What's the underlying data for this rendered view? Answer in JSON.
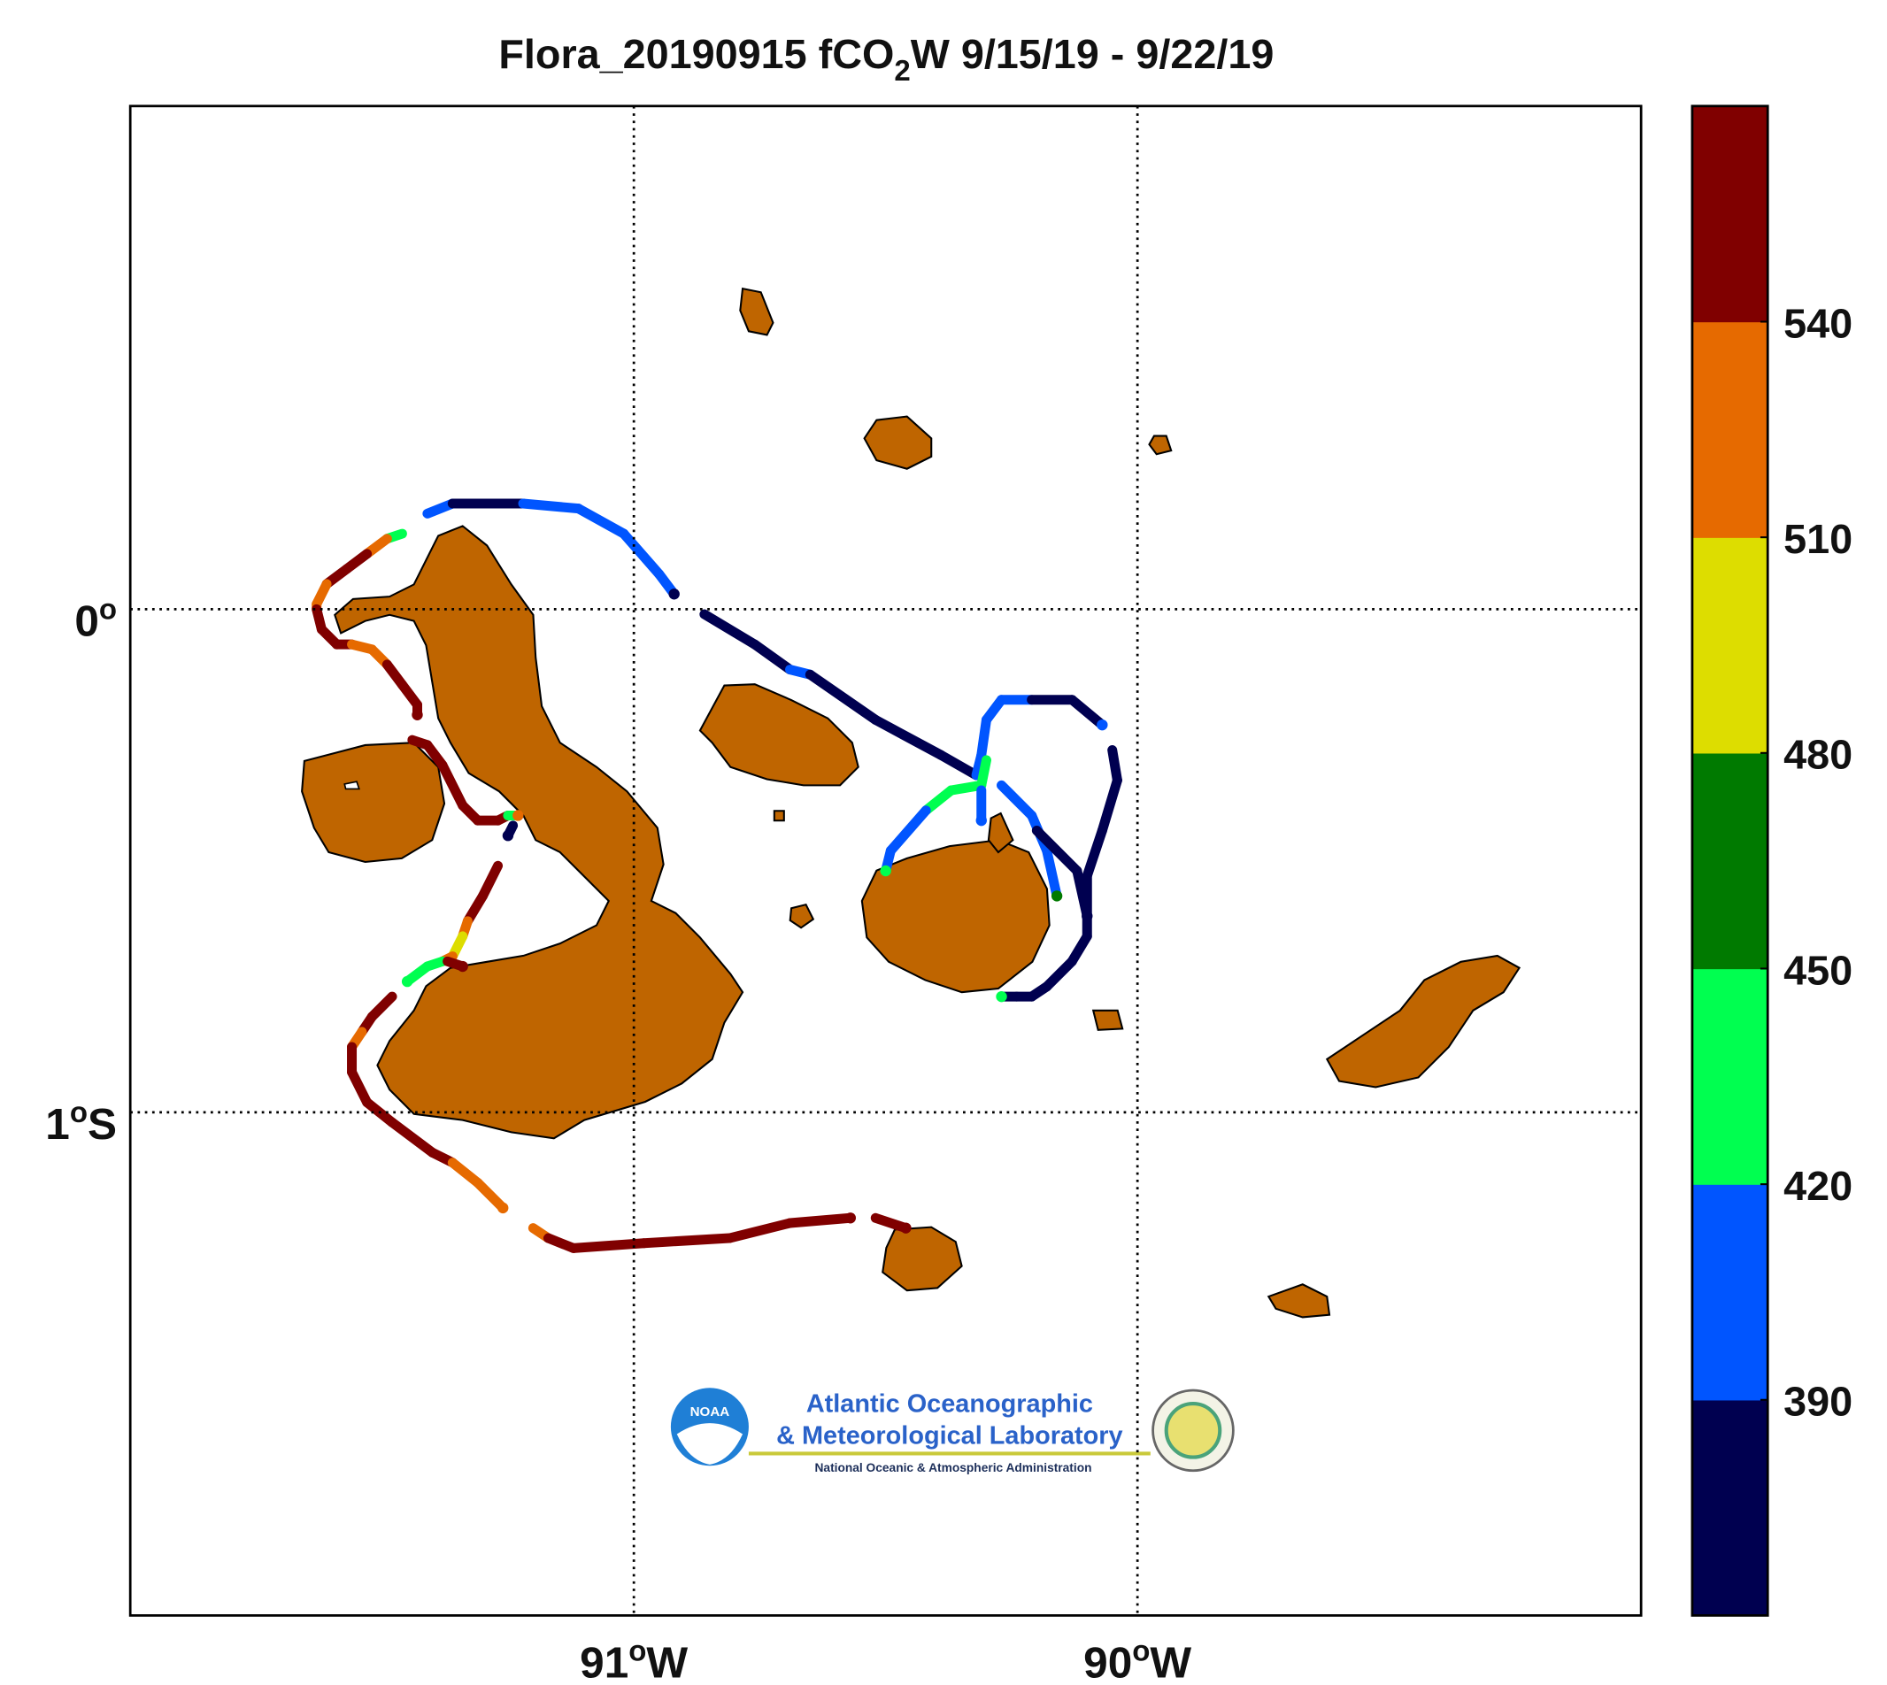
{
  "chart_data": {
    "type": "track",
    "title": "Flora_20190915 fCO",
    "title_sub": "2",
    "title_rest": "W 9/15/19 - 9/22/19",
    "xlim": [
      -92,
      -89
    ],
    "ylim": [
      -2,
      1
    ],
    "xticks": [
      {
        "value": -91,
        "label": "91",
        "sup": "o",
        "hemi": "W"
      },
      {
        "value": -90,
        "label": "90",
        "sup": "o",
        "hemi": "W"
      }
    ],
    "yticks": [
      {
        "value": 0,
        "label": "0",
        "sup": "o"
      },
      {
        "value": -1,
        "label": "1",
        "sup": "o",
        "hemi": "S"
      }
    ],
    "grid": true,
    "colormap": {
      "colors": [
        "#000050",
        "#0055ff",
        "#00ff50",
        "#007a00",
        "#dddd00",
        "#e66a00",
        "#800000"
      ],
      "clim": [
        360,
        570
      ],
      "ticks": [
        390,
        420,
        450,
        480,
        510,
        540
      ]
    },
    "lon": [
      -91.41,
      -91.36,
      -91.29,
      -91.22,
      -91.11,
      -91.02,
      -90.95,
      -90.92,
      null,
      -90.86,
      -90.76,
      -90.69,
      -90.65,
      -90.52,
      -90.39,
      -90.32,
      -90.31,
      -90.3,
      -90.27,
      -90.21,
      -90.13,
      -90.07,
      null,
      -90.05,
      -90.04,
      -90.07,
      -90.1,
      -90.1,
      -90.13,
      -90.18,
      -90.21,
      -90.24,
      -90.27,
      null,
      -90.3,
      -90.31,
      -90.37,
      -90.42,
      -90.49,
      -90.5,
      null,
      -90.31,
      -90.31,
      null,
      -90.27,
      -90.21,
      -90.18,
      -90.16,
      null,
      -90.2,
      -90.12,
      -90.1,
      null,
      -91.46,
      -91.49,
      -91.53,
      -91.57,
      -91.61,
      -91.63,
      -91.63,
      -91.62,
      -91.59,
      -91.56,
      -91.52,
      -91.49,
      -91.46,
      -91.43,
      -91.43,
      null,
      -91.44,
      -91.41,
      -91.38,
      -91.34,
      -91.31,
      -91.27,
      -91.25,
      -91.23,
      null,
      -91.24,
      -91.25,
      null,
      -91.27,
      -91.3,
      -91.33,
      -91.34,
      -91.36,
      -91.38,
      -91.41,
      -91.45,
      null,
      -91.37,
      -91.34,
      null,
      -91.48,
      -91.52,
      -91.54,
      -91.56,
      -91.56,
      -91.53,
      -91.48,
      -91.4,
      -91.36,
      -91.31,
      -91.26,
      null,
      -91.2,
      -91.17,
      -91.12,
      -90.98,
      -90.81,
      -90.69,
      -90.57,
      null,
      -90.52,
      -90.46
    ],
    "lat": [
      0.19,
      0.21,
      0.21,
      0.21,
      0.2,
      0.15,
      0.07,
      0.03,
      null,
      -0.01,
      -0.07,
      -0.12,
      -0.13,
      -0.22,
      -0.29,
      -0.33,
      -0.29,
      -0.22,
      -0.18,
      -0.18,
      -0.18,
      -0.23,
      null,
      -0.28,
      -0.34,
      -0.44,
      -0.53,
      -0.65,
      -0.7,
      -0.75,
      -0.77,
      -0.77,
      -0.77,
      null,
      -0.3,
      -0.35,
      -0.36,
      -0.4,
      -0.48,
      -0.52,
      null,
      -0.36,
      -0.42,
      null,
      -0.35,
      -0.41,
      -0.48,
      -0.57,
      null,
      -0.44,
      -0.52,
      -0.61,
      null,
      0.15,
      0.14,
      0.11,
      0.08,
      0.05,
      0.01,
      0.0,
      -0.04,
      -0.07,
      -0.07,
      -0.08,
      -0.11,
      -0.15,
      -0.19,
      -0.21,
      null,
      -0.26,
      -0.27,
      -0.31,
      -0.39,
      -0.42,
      -0.42,
      -0.41,
      -0.41,
      null,
      -0.43,
      -0.45,
      null,
      -0.51,
      -0.57,
      -0.62,
      -0.65,
      -0.69,
      -0.7,
      -0.71,
      -0.74,
      null,
      -0.7,
      -0.71,
      null,
      -0.77,
      -0.81,
      -0.84,
      -0.87,
      -0.92,
      -0.98,
      -1.02,
      -1.08,
      -1.1,
      -1.14,
      -1.19,
      null,
      -1.23,
      -1.25,
      -1.27,
      -1.26,
      -1.25,
      -1.22,
      -1.21,
      null,
      -1.21,
      -1.23
    ],
    "values": [
      400,
      380,
      380,
      400,
      400,
      400,
      400,
      380,
      null,
      370,
      370,
      400,
      370,
      370,
      370,
      400,
      400,
      400,
      400,
      380,
      380,
      400,
      null,
      370,
      370,
      370,
      370,
      370,
      370,
      370,
      370,
      370,
      440,
      null,
      440,
      440,
      440,
      400,
      400,
      440,
      null,
      400,
      400,
      null,
      400,
      400,
      400,
      460,
      null,
      370,
      370,
      370,
      null,
      440,
      530,
      555,
      555,
      530,
      530,
      555,
      555,
      555,
      530,
      525,
      555,
      555,
      555,
      555,
      null,
      555,
      555,
      555,
      555,
      555,
      555,
      440,
      525,
      null,
      370,
      370,
      null,
      555,
      555,
      530,
      495,
      530,
      440,
      440,
      440,
      null,
      555,
      555,
      null,
      555,
      555,
      530,
      555,
      555,
      555,
      555,
      555,
      525,
      525,
      525,
      null,
      525,
      555,
      555,
      555,
      555,
      555,
      555,
      null,
      555,
      555
    ]
  },
  "logo": {
    "badge": "NOAA",
    "line1": "Atlantic Oceanographic",
    "line2": "& Meteorological Laboratory",
    "line3": "National Oceanic & Atmospheric Administration"
  }
}
